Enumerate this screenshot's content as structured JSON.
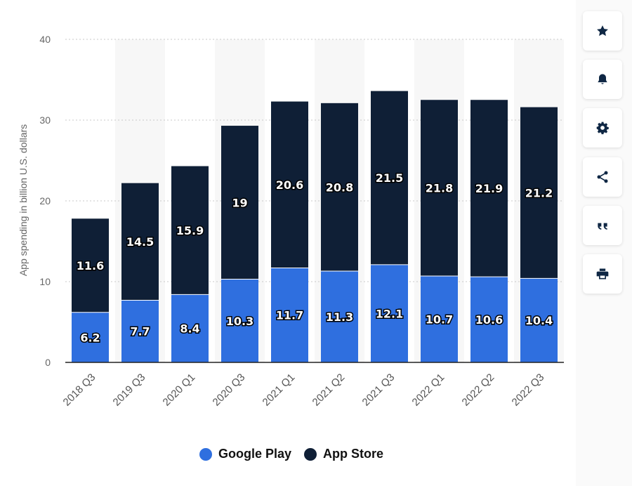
{
  "chart_data": {
    "type": "bar",
    "stacked": true,
    "categories": [
      "2018 Q3",
      "2019 Q3",
      "2020 Q1",
      "2020 Q3",
      "2021 Q1",
      "2021 Q2",
      "2021 Q3",
      "2022 Q1",
      "2022 Q2",
      "2022 Q3"
    ],
    "series": [
      {
        "name": "Google Play",
        "color": "#2f6fdf",
        "values": [
          6.2,
          7.7,
          8.4,
          10.3,
          11.7,
          11.3,
          12.1,
          10.7,
          10.6,
          10.4
        ]
      },
      {
        "name": "App Store",
        "color": "#0f1f36",
        "values": [
          11.6,
          14.5,
          15.9,
          19,
          20.6,
          20.8,
          21.5,
          21.8,
          21.9,
          21.2
        ]
      }
    ],
    "title": "",
    "xlabel": "",
    "ylabel": "App spending in billion U.S. dollars",
    "ylim": [
      0,
      40
    ],
    "yticks": [
      0,
      10,
      20,
      30,
      40
    ],
    "grid": true,
    "legend_position": "bottom"
  },
  "sidebar": {
    "buttons": [
      {
        "name": "star-icon"
      },
      {
        "name": "bell-icon"
      },
      {
        "name": "gear-icon"
      },
      {
        "name": "share-icon"
      },
      {
        "name": "quote-icon"
      },
      {
        "name": "print-icon"
      }
    ]
  }
}
